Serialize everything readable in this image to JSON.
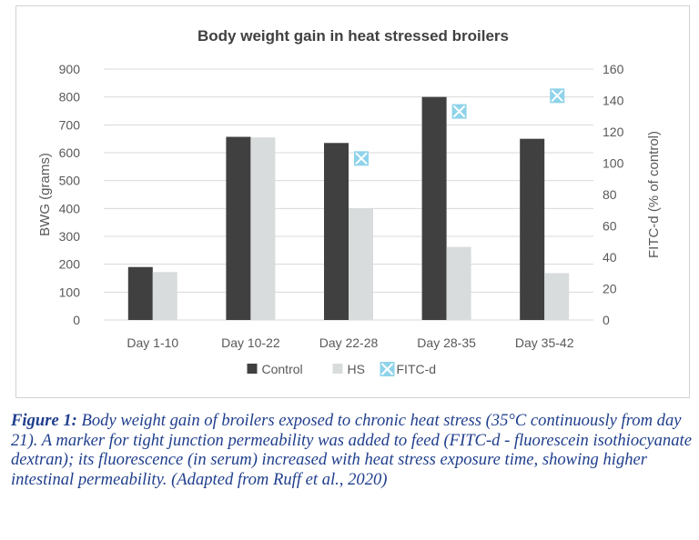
{
  "chart_data": {
    "type": "bar",
    "title": "Body weight gain in heat stressed broilers",
    "xlabel": "",
    "ylabel": "BWG (grams)",
    "y2label": "FITC-d (% of control)",
    "categories": [
      "Day 1-10",
      "Day 10-22",
      "Day 22-28",
      "Day 28-35",
      "Day 35-42"
    ],
    "ylim": [
      0,
      900
    ],
    "y2lim": [
      0,
      160
    ],
    "yticks": [
      "0",
      "100",
      "200",
      "300",
      "400",
      "500",
      "600",
      "700",
      "800",
      "900"
    ],
    "y2ticks": [
      "0",
      "20",
      "40",
      "60",
      "80",
      "100",
      "120",
      "140",
      "160"
    ],
    "grid": "horizontal",
    "legend_position": "bottom",
    "series": [
      {
        "name": "Control",
        "kind": "bar",
        "axis": "left",
        "color": "#404040",
        "values": [
          190,
          657,
          635,
          800,
          650
        ]
      },
      {
        "name": "HS",
        "kind": "bar",
        "axis": "left",
        "color": "#d9dcdc",
        "values": [
          172,
          655,
          400,
          262,
          168
        ]
      },
      {
        "name": "FITC-d",
        "kind": "marker",
        "axis": "right",
        "color": "#8fd3ea",
        "values": [
          null,
          null,
          103,
          133,
          143
        ]
      }
    ]
  },
  "caption": {
    "lead": "Figure 1:",
    "text": " Body weight gain of broilers exposed to chronic heat stress (35°C continuously from day 21). A marker for tight junction permeability was added to feed (FITC-d - fluorescein isothiocyanate dextran); its fluorescence (in serum) increased with heat stress exposure time, showing higher intestinal permeability. (Adapted from Ruff et al., 2020)"
  }
}
